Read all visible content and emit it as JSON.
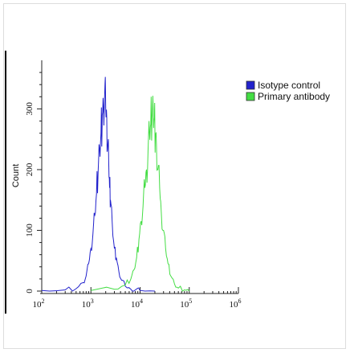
{
  "chart_data": {
    "type": "line",
    "title": "",
    "xlabel": "",
    "ylabel": "Count",
    "xscale": "log",
    "xlim": [
      100,
      1000000
    ],
    "ylim": [
      0,
      380
    ],
    "x_tick_exponents": [
      "2",
      "3",
      "4",
      "5",
      "6"
    ],
    "x_tick_base": "10",
    "y_ticks": [
      "0",
      "100",
      "200",
      "300"
    ],
    "grid": false,
    "legend_position": "top-right",
    "series": [
      {
        "name": "Isotype control",
        "color": "#2222cc",
        "x": [
          100,
          300,
          500,
          700,
          800,
          900,
          1000,
          1100,
          1200,
          1300,
          1400,
          1500,
          1600,
          1700,
          1800,
          1900,
          2000,
          2100,
          2200,
          2300,
          2400,
          2500,
          2700,
          3000,
          3300,
          3700,
          4200,
          5000,
          6500,
          8000,
          10000,
          20000
        ],
        "y": [
          1,
          2,
          4,
          14,
          25,
          45,
          70,
          95,
          125,
          160,
          195,
          235,
          260,
          290,
          305,
          320,
          300,
          285,
          240,
          215,
          170,
          150,
          115,
          70,
          55,
          32,
          18,
          8,
          3,
          2,
          1,
          0
        ]
      },
      {
        "name": "Primary antibody",
        "color": "#44dd44",
        "x": [
          1000,
          3000,
          5000,
          6500,
          7500,
          8500,
          9500,
          10500,
          11500,
          12500,
          13500,
          14500,
          15500,
          16500,
          17500,
          18500,
          19500,
          20500,
          21500,
          23000,
          25000,
          27000,
          30000,
          33000,
          37000,
          42000,
          50000,
          60000,
          80000,
          100000
        ],
        "y": [
          1,
          3,
          10,
          20,
          35,
          55,
          85,
          115,
          140,
          170,
          200,
          230,
          260,
          275,
          285,
          300,
          285,
          260,
          240,
          200,
          170,
          130,
          100,
          70,
          45,
          25,
          12,
          5,
          2,
          0
        ]
      }
    ]
  }
}
